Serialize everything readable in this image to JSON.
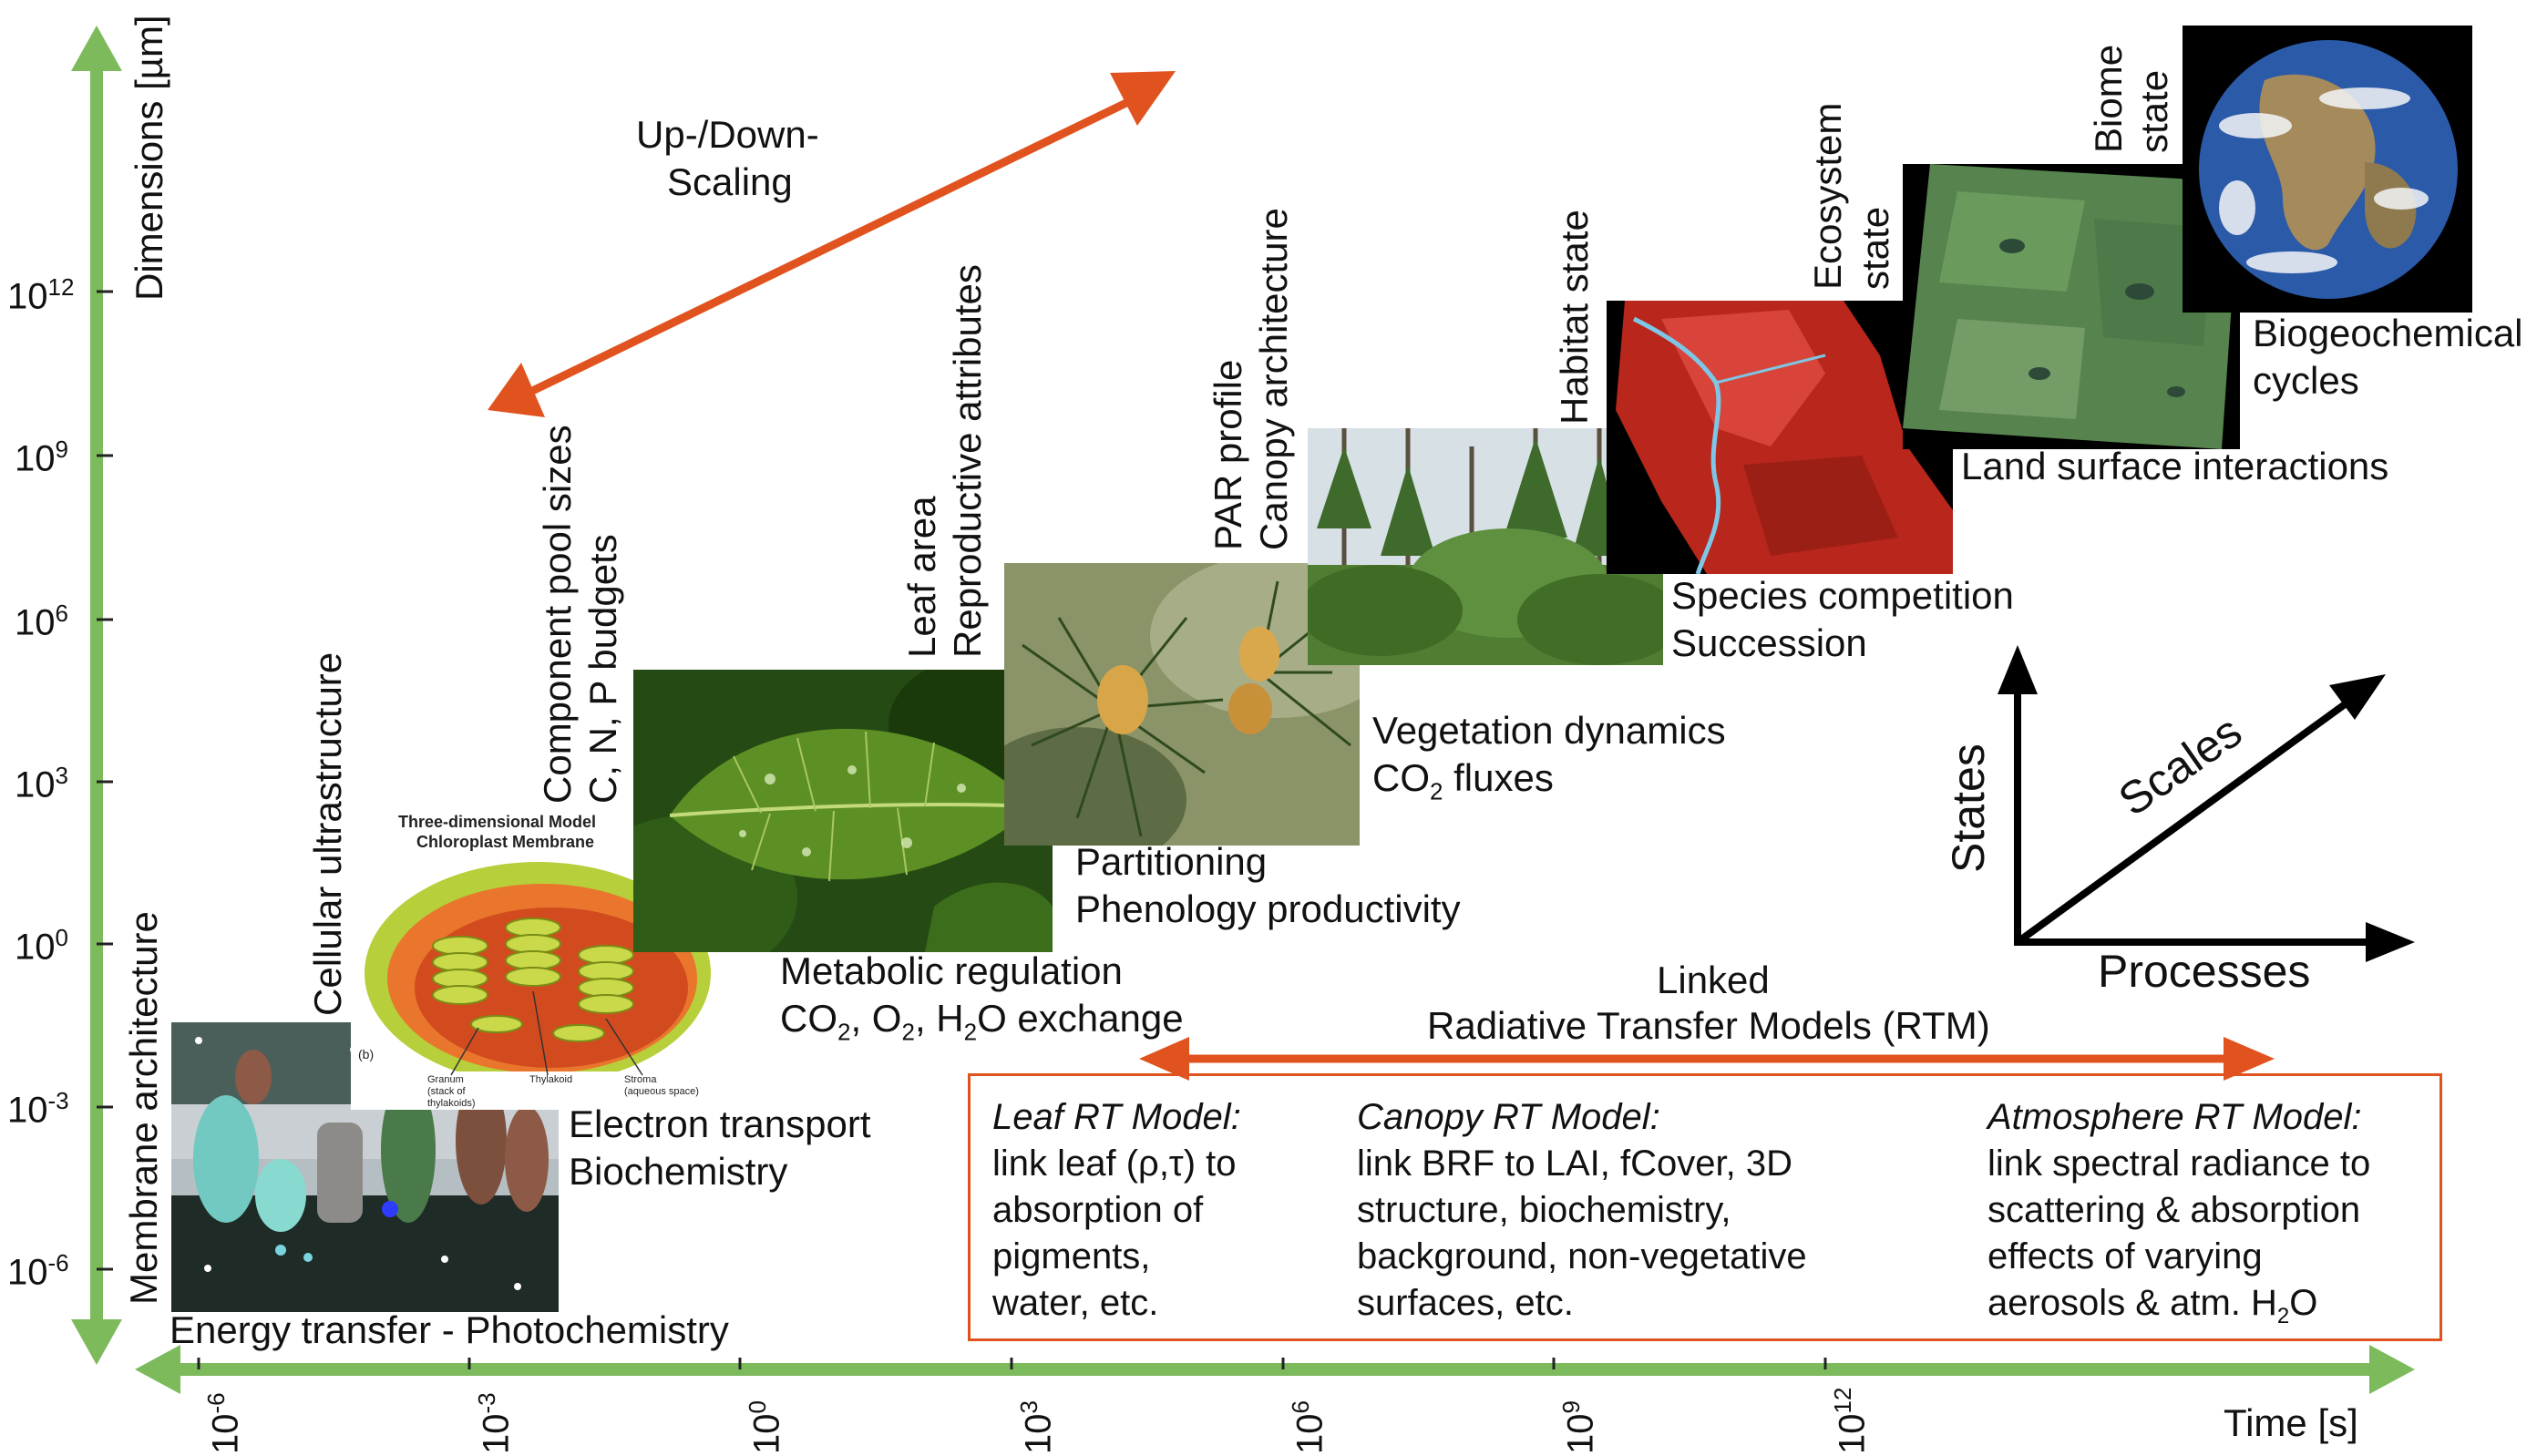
{
  "axes": {
    "y_label": "Dimensions [µm]",
    "x_label": "Time [s]",
    "y_ticks": [
      {
        "base": "10",
        "exp": "12"
      },
      {
        "base": "10",
        "exp": "9"
      },
      {
        "base": "10",
        "exp": "6"
      },
      {
        "base": "10",
        "exp": "3"
      },
      {
        "base": "10",
        "exp": "0"
      },
      {
        "base": "10",
        "exp": "-3"
      },
      {
        "base": "10",
        "exp": "-6"
      }
    ],
    "x_ticks": [
      {
        "base": "10",
        "exp": "-6"
      },
      {
        "base": "10",
        "exp": "-3"
      },
      {
        "base": "10",
        "exp": "0"
      },
      {
        "base": "10",
        "exp": "3"
      },
      {
        "base": "10",
        "exp": "6"
      },
      {
        "base": "10",
        "exp": "9"
      },
      {
        "base": "10",
        "exp": "12"
      }
    ]
  },
  "scaling": {
    "line1": "Up-/Down-",
    "line2": "Scaling"
  },
  "levels": {
    "membrane": {
      "state": "Membrane architecture",
      "process": "Energy transfer - Photochemistry"
    },
    "cell": {
      "state": "Cellular ultrastructure",
      "process1": "Electron transport",
      "process2": "Biochemistry"
    },
    "chloroplast_inset": {
      "title1": "Three-dimensional Model",
      "title2": "Chloroplast Membrane",
      "tag": "(b)",
      "lbl_granum": "Granum",
      "lbl_granum2": "(stack of",
      "lbl_granum3": "thylakoids)",
      "lbl_thylakoid": "Thylakoid",
      "lbl_stroma": "Stroma",
      "lbl_stroma2": "(aqueous space)"
    },
    "leaf": {
      "state1": "Component pool sizes",
      "state2": "C, N, P budgets",
      "process1": "Metabolic regulation",
      "process2_parts": [
        "CO",
        "2",
        ", O",
        "2",
        ", H",
        "2",
        "O exchange"
      ]
    },
    "shoot": {
      "state1": "Leaf area",
      "state2": "Reproductive attributes",
      "process1": "Partitioning",
      "process2": "Phenology productivity"
    },
    "canopy": {
      "state1": "PAR profile",
      "state2": "Canopy architecture",
      "process1": "Vegetation dynamics",
      "process2_parts": [
        "CO",
        "2",
        " fluxes"
      ]
    },
    "habitat": {
      "state": "Habitat state",
      "process1": "Species competition",
      "process2": "Succession"
    },
    "ecosystem": {
      "state1": "Ecosystem",
      "state2": "state",
      "process": "Land surface interactions"
    },
    "biome": {
      "state1": "Biome",
      "state2": "state",
      "process1": "Biogeochemical",
      "process2": "cycles"
    }
  },
  "legend_axes": {
    "states": "States",
    "scales": "Scales",
    "processes": "Processes"
  },
  "rtm": {
    "title1": "Linked",
    "title2": "Radiative Transfer Models (RTM)",
    "leaf": {
      "heading": "Leaf RT Model:",
      "lines": [
        "link leaf (ρ,τ) to",
        "absorption of",
        "pigments,",
        "water, etc."
      ]
    },
    "canopy": {
      "heading": "Canopy RT Model:",
      "lines": [
        "link BRF to LAI, fCover, 3D",
        "structure, biochemistry,",
        "background, non-vegetative",
        "surfaces, etc."
      ]
    },
    "atmosphere": {
      "heading": "Atmosphere RT Model:",
      "lines": [
        "link spectral radiance to",
        "scattering & absorption",
        "effects of varying"
      ],
      "last_parts": [
        "aerosols & atm. H",
        "2",
        "O"
      ]
    }
  },
  "colors": {
    "axis_green": "#7dba5c",
    "arrow_orange": "#e0531f",
    "box_border": "#e0531f"
  }
}
